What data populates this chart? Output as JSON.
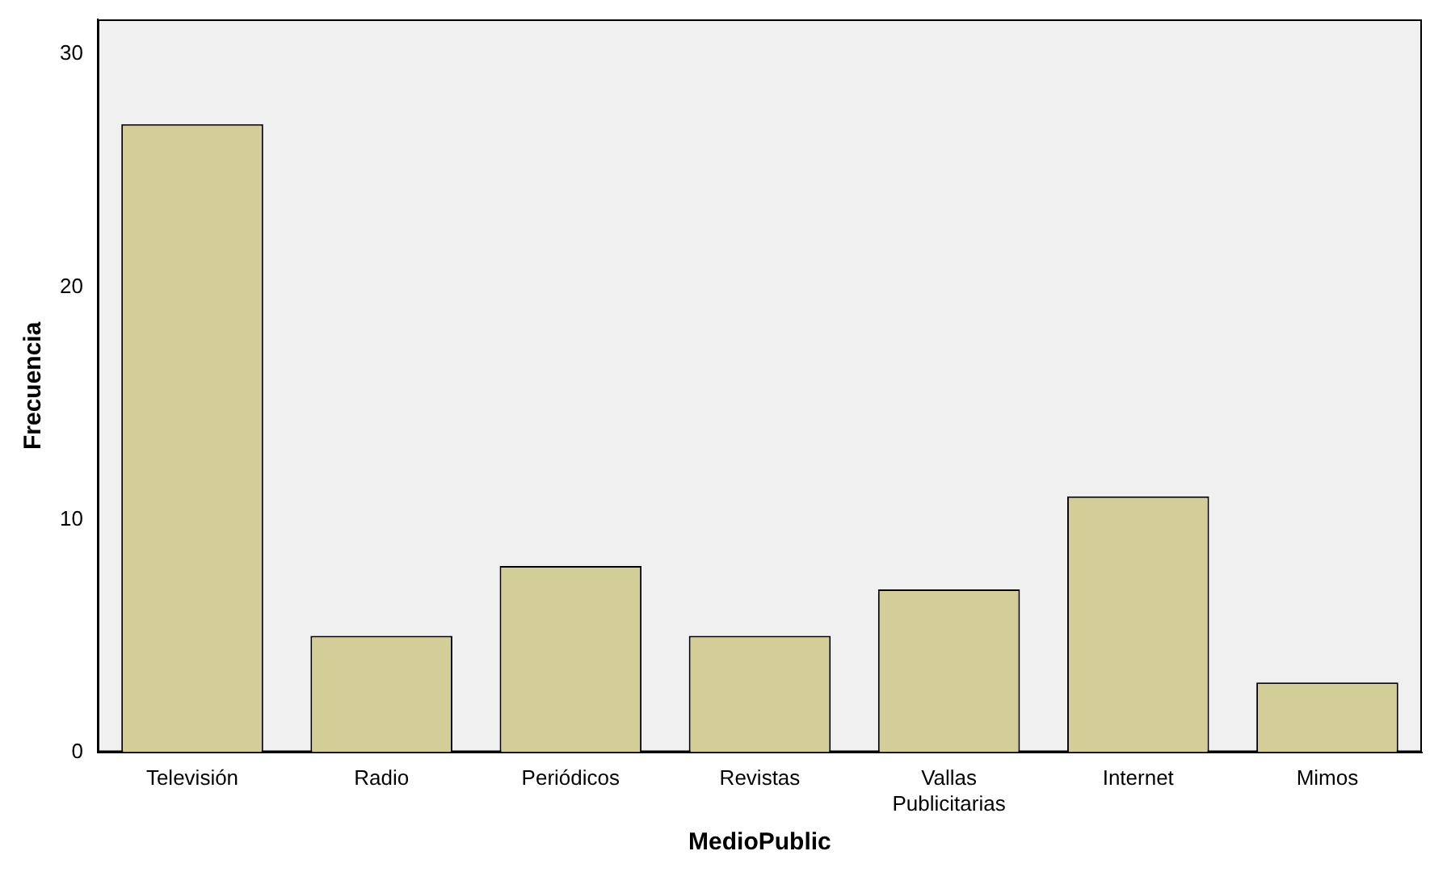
{
  "chart_data": {
    "type": "bar",
    "xlabel": "MedioPublic",
    "ylabel": "Frecuencia",
    "categories": [
      "Televisión",
      "Radio",
      "Periódicos",
      "Revistas",
      "Vallas Publicitarias",
      "Internet",
      "Mimos"
    ],
    "values": [
      27,
      5,
      8,
      5,
      7,
      11,
      3
    ],
    "color": "#d3ce97",
    "ylim": [
      0,
      31.5
    ],
    "yticks": [
      0,
      10,
      20,
      30
    ],
    "grid": false,
    "legend": false
  }
}
